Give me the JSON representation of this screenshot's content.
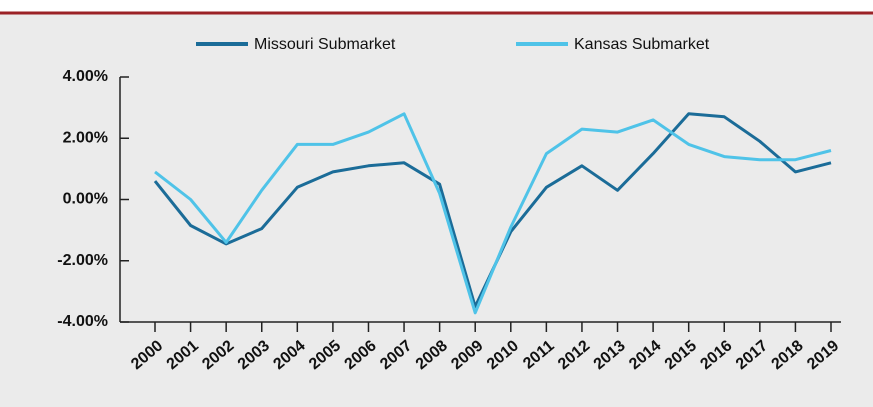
{
  "chart_data": {
    "type": "line",
    "categories": [
      "2000",
      "2001",
      "2002",
      "2003",
      "2004",
      "2005",
      "2006",
      "2007",
      "2008",
      "2009",
      "2010",
      "2011",
      "2012",
      "2013",
      "2014",
      "2015",
      "2016",
      "2017",
      "2018",
      "2019"
    ],
    "series": [
      {
        "name": "Missouri Submarket",
        "color": "#1b6c98",
        "values": [
          0.6,
          -0.85,
          -1.45,
          -0.95,
          0.4,
          0.9,
          1.1,
          1.2,
          0.5,
          -3.5,
          -1.05,
          0.4,
          1.1,
          0.3,
          1.5,
          2.8,
          2.7,
          1.9,
          0.9,
          1.2
        ]
      },
      {
        "name": "Kansas Submarket",
        "color": "#4fc3e8",
        "values": [
          0.9,
          0.0,
          -1.4,
          0.3,
          1.8,
          1.8,
          2.2,
          2.8,
          0.2,
          -3.7,
          -0.9,
          1.5,
          2.3,
          2.2,
          2.6,
          1.8,
          1.4,
          1.3,
          1.3,
          1.6
        ]
      }
    ],
    "ylim": [
      -4,
      4
    ],
    "yticks": [
      {
        "value": 4,
        "label": "4.00%"
      },
      {
        "value": 2,
        "label": "2.00%"
      },
      {
        "value": 0,
        "label": "0.00%"
      },
      {
        "value": -2,
        "label": "-2.00%"
      },
      {
        "value": -4,
        "label": "-4.00%"
      }
    ]
  }
}
